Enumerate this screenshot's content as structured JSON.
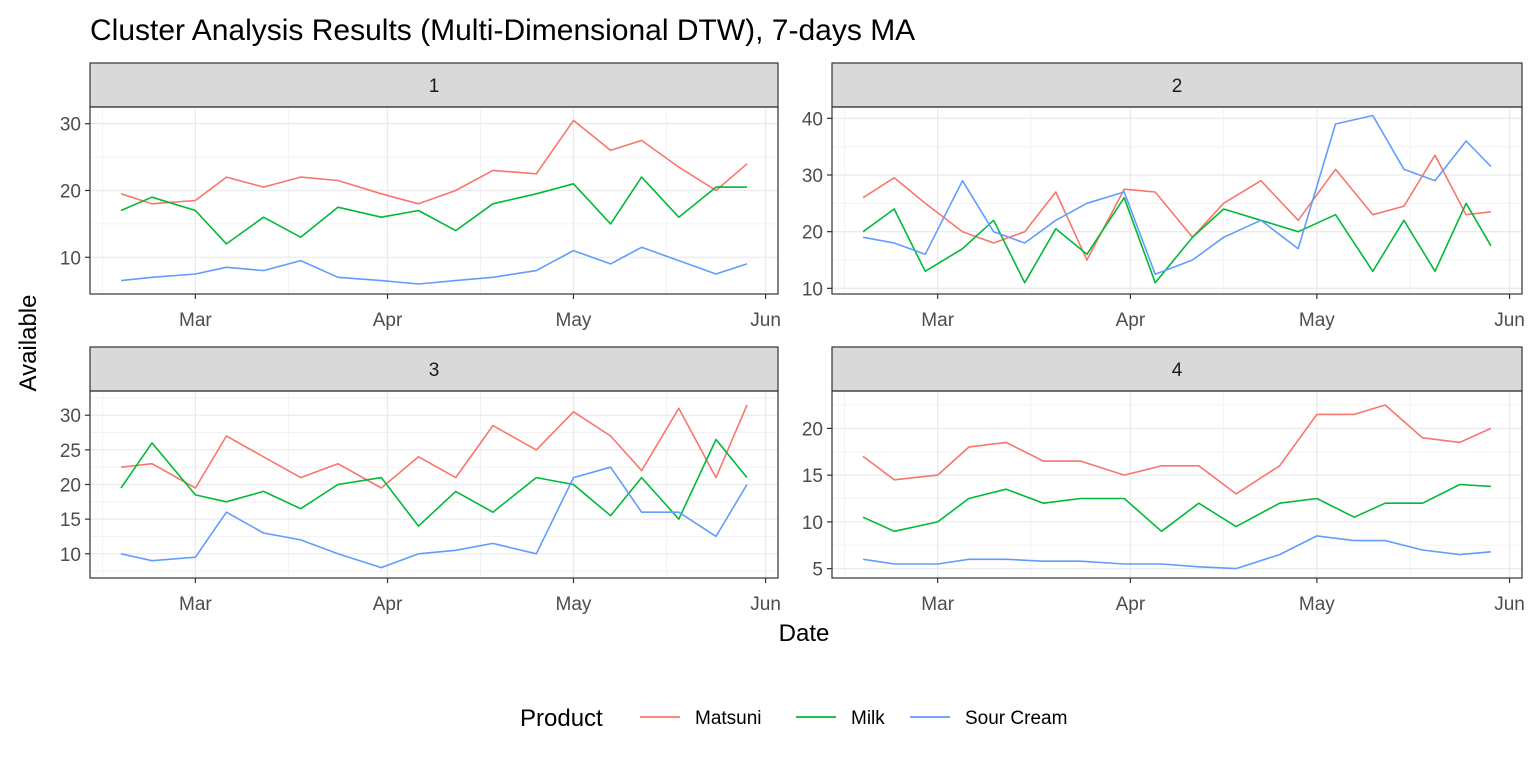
{
  "chart_data": {
    "type": "line",
    "title": "Cluster Analysis Results (Multi-Dimensional DTW), 7-days MA",
    "xlabel": "Date",
    "ylabel": "Available",
    "x_ticks": [
      "Mar",
      "Apr",
      "May",
      "Jun"
    ],
    "legend": {
      "title": "Product",
      "position": "bottom",
      "entries": [
        "Matsuni",
        "Milk",
        "Sour Cream"
      ]
    },
    "colors": {
      "Matsuni": "#F8766D",
      "Milk": "#00BA38",
      "Sour Cream": "#619CFF"
    },
    "grid": true,
    "panels": [
      {
        "strip": "1",
        "ylim": [
          4.5,
          32.5
        ],
        "y_ticks": [
          10,
          20,
          30
        ],
        "series": [
          {
            "name": "Matsuni",
            "x": [
              "2024-02-18",
              "2024-02-23",
              "2024-03-01",
              "2024-03-06",
              "2024-03-12",
              "2024-03-18",
              "2024-03-24",
              "2024-03-31",
              "2024-04-06",
              "2024-04-12",
              "2024-04-18",
              "2024-04-25",
              "2024-05-01",
              "2024-05-07",
              "2024-05-12",
              "2024-05-18",
              "2024-05-24",
              "2024-05-29"
            ],
            "y": [
              19.5,
              18,
              18.5,
              22,
              20.5,
              22,
              21.5,
              19.5,
              18,
              20,
              23,
              22.5,
              30.5,
              26,
              27.5,
              23.5,
              20,
              24
            ]
          },
          {
            "name": "Milk",
            "x": [
              "2024-02-18",
              "2024-02-23",
              "2024-03-01",
              "2024-03-06",
              "2024-03-12",
              "2024-03-18",
              "2024-03-24",
              "2024-03-31",
              "2024-04-06",
              "2024-04-12",
              "2024-04-18",
              "2024-04-25",
              "2024-05-01",
              "2024-05-07",
              "2024-05-12",
              "2024-05-18",
              "2024-05-24",
              "2024-05-29"
            ],
            "y": [
              17,
              19,
              17,
              12,
              16,
              13,
              17.5,
              16,
              17,
              14,
              18,
              19.5,
              21,
              15,
              22,
              16,
              20.5,
              20.5
            ]
          },
          {
            "name": "Sour Cream",
            "x": [
              "2024-02-18",
              "2024-02-23",
              "2024-03-01",
              "2024-03-06",
              "2024-03-12",
              "2024-03-18",
              "2024-03-24",
              "2024-03-31",
              "2024-04-06",
              "2024-04-12",
              "2024-04-18",
              "2024-04-25",
              "2024-05-01",
              "2024-05-07",
              "2024-05-12",
              "2024-05-18",
              "2024-05-24",
              "2024-05-29"
            ],
            "y": [
              6.5,
              7,
              7.5,
              8.5,
              8,
              9.5,
              7,
              6.5,
              6,
              6.5,
              7,
              8,
              11,
              9,
              11.5,
              9.5,
              7.5,
              9
            ]
          }
        ]
      },
      {
        "strip": "2",
        "ylim": [
          9,
          42
        ],
        "y_ticks": [
          10,
          20,
          30,
          40
        ],
        "series": [
          {
            "name": "Matsuni",
            "x": [
              "2024-02-18",
              "2024-02-23",
              "2024-02-28",
              "2024-03-05",
              "2024-03-10",
              "2024-03-15",
              "2024-03-20",
              "2024-03-25",
              "2024-03-31",
              "2024-04-05",
              "2024-04-11",
              "2024-04-16",
              "2024-04-22",
              "2024-04-28",
              "2024-05-04",
              "2024-05-10",
              "2024-05-15",
              "2024-05-20",
              "2024-05-25",
              "2024-05-29"
            ],
            "y": [
              26,
              29.5,
              25,
              20,
              18,
              20,
              27,
              15,
              27.5,
              27,
              19,
              25,
              29,
              22,
              31,
              23,
              24.5,
              33.5,
              23,
              23.5
            ]
          },
          {
            "name": "Milk",
            "x": [
              "2024-02-18",
              "2024-02-23",
              "2024-02-28",
              "2024-03-05",
              "2024-03-10",
              "2024-03-15",
              "2024-03-20",
              "2024-03-25",
              "2024-03-31",
              "2024-04-05",
              "2024-04-11",
              "2024-04-16",
              "2024-04-22",
              "2024-04-28",
              "2024-05-04",
              "2024-05-10",
              "2024-05-15",
              "2024-05-20",
              "2024-05-25",
              "2024-05-29"
            ],
            "y": [
              20,
              24,
              13,
              17,
              22,
              11,
              20.5,
              16,
              26,
              11,
              19,
              24,
              22,
              20,
              23,
              13,
              22,
              13,
              25,
              17.5
            ]
          },
          {
            "name": "Sour Cream",
            "x": [
              "2024-02-18",
              "2024-02-23",
              "2024-02-28",
              "2024-03-05",
              "2024-03-10",
              "2024-03-15",
              "2024-03-20",
              "2024-03-25",
              "2024-03-31",
              "2024-04-05",
              "2024-04-11",
              "2024-04-16",
              "2024-04-22",
              "2024-04-28",
              "2024-05-04",
              "2024-05-10",
              "2024-05-15",
              "2024-05-20",
              "2024-05-25",
              "2024-05-29"
            ],
            "y": [
              19,
              18,
              16,
              29,
              20,
              18,
              22,
              25,
              27,
              12.5,
              15,
              19,
              22,
              17,
              39,
              40.5,
              31,
              29,
              36,
              31.5
            ]
          }
        ]
      },
      {
        "strip": "3",
        "ylim": [
          6.5,
          33.5
        ],
        "y_ticks": [
          10,
          15,
          20,
          25,
          30
        ],
        "series": [
          {
            "name": "Matsuni",
            "x": [
              "2024-02-18",
              "2024-02-23",
              "2024-03-01",
              "2024-03-06",
              "2024-03-12",
              "2024-03-18",
              "2024-03-24",
              "2024-03-31",
              "2024-04-06",
              "2024-04-12",
              "2024-04-18",
              "2024-04-25",
              "2024-05-01",
              "2024-05-07",
              "2024-05-12",
              "2024-05-18",
              "2024-05-24",
              "2024-05-29"
            ],
            "y": [
              22.5,
              23,
              19.5,
              27,
              24,
              21,
              23,
              19.5,
              24,
              21,
              28.5,
              25,
              30.5,
              27,
              22,
              31,
              21,
              31.5
            ]
          },
          {
            "name": "Milk",
            "x": [
              "2024-02-18",
              "2024-02-23",
              "2024-03-01",
              "2024-03-06",
              "2024-03-12",
              "2024-03-18",
              "2024-03-24",
              "2024-03-31",
              "2024-04-06",
              "2024-04-12",
              "2024-04-18",
              "2024-04-25",
              "2024-05-01",
              "2024-05-07",
              "2024-05-12",
              "2024-05-18",
              "2024-05-24",
              "2024-05-29"
            ],
            "y": [
              19.5,
              26,
              18.5,
              17.5,
              19,
              16.5,
              20,
              21,
              14,
              19,
              16,
              21,
              20,
              15.5,
              21,
              15,
              26.5,
              21
            ]
          },
          {
            "name": "Sour Cream",
            "x": [
              "2024-02-18",
              "2024-02-23",
              "2024-03-01",
              "2024-03-06",
              "2024-03-12",
              "2024-03-18",
              "2024-03-24",
              "2024-03-31",
              "2024-04-06",
              "2024-04-12",
              "2024-04-18",
              "2024-04-25",
              "2024-05-01",
              "2024-05-07",
              "2024-05-12",
              "2024-05-18",
              "2024-05-24",
              "2024-05-29"
            ],
            "y": [
              10,
              9,
              9.5,
              16,
              13,
              12,
              10,
              8,
              10,
              10.5,
              11.5,
              10,
              21,
              22.5,
              16,
              16,
              12.5,
              20
            ]
          }
        ]
      },
      {
        "strip": "4",
        "ylim": [
          4,
          24
        ],
        "y_ticks": [
          5,
          10,
          15,
          20
        ],
        "series": [
          {
            "name": "Matsuni",
            "x": [
              "2024-02-18",
              "2024-02-23",
              "2024-03-01",
              "2024-03-06",
              "2024-03-12",
              "2024-03-18",
              "2024-03-24",
              "2024-03-31",
              "2024-04-06",
              "2024-04-12",
              "2024-04-18",
              "2024-04-25",
              "2024-05-01",
              "2024-05-07",
              "2024-05-12",
              "2024-05-18",
              "2024-05-24",
              "2024-05-29"
            ],
            "y": [
              17,
              14.5,
              15,
              18,
              18.5,
              16.5,
              16.5,
              15,
              16,
              16,
              13,
              16,
              21.5,
              21.5,
              22.5,
              19,
              18.5,
              20
            ]
          },
          {
            "name": "Milk",
            "x": [
              "2024-02-18",
              "2024-02-23",
              "2024-03-01",
              "2024-03-06",
              "2024-03-12",
              "2024-03-18",
              "2024-03-24",
              "2024-03-31",
              "2024-04-06",
              "2024-04-12",
              "2024-04-18",
              "2024-04-25",
              "2024-05-01",
              "2024-05-07",
              "2024-05-12",
              "2024-05-18",
              "2024-05-24",
              "2024-05-29"
            ],
            "y": [
              10.5,
              9,
              10,
              12.5,
              13.5,
              12,
              12.5,
              12.5,
              9,
              12,
              9.5,
              12,
              12.5,
              10.5,
              12,
              12,
              14,
              13.8
            ]
          },
          {
            "name": "Sour Cream",
            "x": [
              "2024-02-18",
              "2024-02-23",
              "2024-03-01",
              "2024-03-06",
              "2024-03-12",
              "2024-03-18",
              "2024-03-24",
              "2024-03-31",
              "2024-04-06",
              "2024-04-12",
              "2024-04-18",
              "2024-04-25",
              "2024-05-01",
              "2024-05-07",
              "2024-05-12",
              "2024-05-18",
              "2024-05-24",
              "2024-05-29"
            ],
            "y": [
              6,
              5.5,
              5.5,
              6,
              6,
              5.8,
              5.8,
              5.5,
              5.5,
              5.2,
              5,
              6.5,
              8.5,
              8,
              8,
              7,
              6.5,
              6.8
            ]
          }
        ]
      }
    ]
  }
}
